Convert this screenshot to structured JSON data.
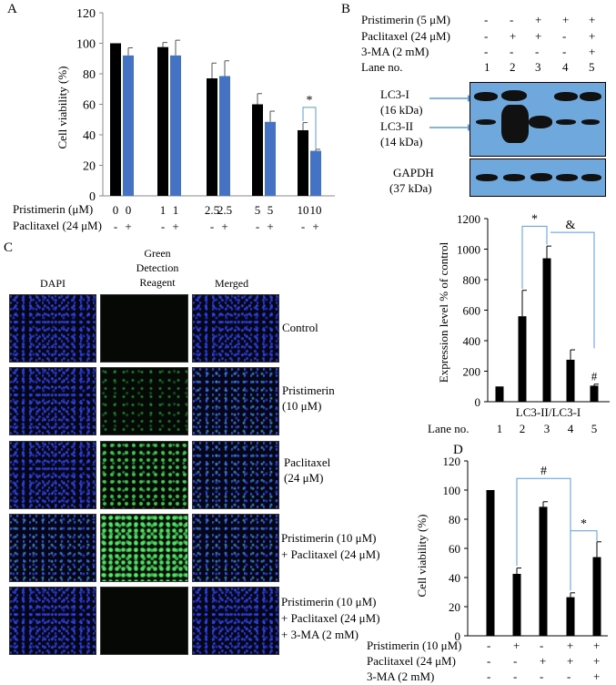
{
  "panel_labels": {
    "a": "A",
    "b": "B",
    "c": "C",
    "d": "D"
  },
  "colors": {
    "black_bar": "#000000",
    "blue_bar": "#4472c4",
    "blot_bg": "#6fa8dc",
    "bracket": "#5b9bd5"
  },
  "panel_a": {
    "ylabel": "Cell viability (%)",
    "yticks": [
      "0",
      "20",
      "40",
      "60",
      "80",
      "100",
      "120"
    ],
    "row1_label": "Pristimerin (μM)",
    "row2_label": "Paclitaxel (24 μM)",
    "row1_values": [
      "0",
      "0",
      "1",
      "1",
      "2.5",
      "2.5",
      "5",
      "5",
      "10",
      "10"
    ],
    "row2_values": [
      "-",
      "+",
      "-",
      "+",
      "-",
      "+",
      "-",
      "+",
      "-",
      "+"
    ],
    "significance": "*"
  },
  "panel_b": {
    "row_labels": [
      "Pristimerin (5 μM)",
      "Paclitaxel (24 μM)",
      "3-MA (2 mM)",
      "Lane no."
    ],
    "row_values": [
      [
        "-",
        "-",
        "+",
        "+",
        "+"
      ],
      [
        "-",
        "+",
        "+",
        "-",
        "+"
      ],
      [
        "-",
        "-",
        "-",
        "-",
        "+"
      ],
      [
        "1",
        "2",
        "3",
        "4",
        "5"
      ]
    ],
    "lc3_i": "LC3-I",
    "lc3_i_kda": "(16 kDa)",
    "lc3_ii": "LC3-II",
    "lc3_ii_kda": "(14 kDa)",
    "gapdh": "GAPDH",
    "gapdh_kda": "(37 kDa)",
    "bar_ylabel": "Expression level % of control",
    "bar_yticks": [
      "0",
      "200",
      "400",
      "600",
      "800",
      "1000",
      "1200"
    ],
    "bar_xlabel": "LC3-II/LC3-I",
    "lane_label": "Lane no.",
    "lanes": [
      "1",
      "2",
      "3",
      "4",
      "5"
    ],
    "sig_star": "*",
    "sig_amp": "&",
    "sig_hash": "#"
  },
  "panel_c": {
    "col_dapi": "DAPI",
    "col_green_1": "Green",
    "col_green_2": "Detection",
    "col_green_3": "Reagent",
    "col_merged": "Merged",
    "rows": [
      [
        "Control"
      ],
      [
        "Pristimerin",
        "(10 μM)"
      ],
      [
        "Paclitaxel",
        "(24 μM)"
      ],
      [
        "Pristimerin (10 μM)",
        "+ Paclitaxel (24 μM)"
      ],
      [
        "Pristimerin (10 μM)",
        "+ Paclitaxel (24 μM)",
        "+ 3-MA (2 mM)"
      ]
    ]
  },
  "panel_d": {
    "ylabel": "Cell viability (%)",
    "yticks": [
      "0",
      "20",
      "40",
      "60",
      "80",
      "100",
      "120"
    ],
    "row_labels": [
      "Pristimerin (10 μM)",
      "Paclitaxel (24 μM)",
      "3-MA (2 mM)"
    ],
    "row_values": [
      [
        "-",
        "+",
        "-",
        "+",
        "+"
      ],
      [
        "-",
        "-",
        "+",
        "+",
        "+"
      ],
      [
        "-",
        "-",
        "-",
        "-",
        "+"
      ]
    ],
    "sig_hash": "#",
    "sig_star": "*"
  },
  "chart_data": [
    {
      "type": "bar",
      "panel": "A",
      "ylabel": "Cell viability (%)",
      "ylim": [
        0,
        120
      ],
      "series": [
        {
          "name": "Paclitaxel -",
          "color": "#000000",
          "values": [
            100,
            97.5,
            77,
            60,
            43
          ],
          "errors": [
            0,
            3,
            10,
            7,
            5
          ]
        },
        {
          "name": "Paclitaxel +",
          "color": "#4472c4",
          "values": [
            92,
            92,
            78.5,
            48.5,
            29.5
          ],
          "errors": [
            5,
            10,
            10,
            7,
            1
          ]
        }
      ],
      "categories": [
        "0",
        "1",
        "2.5",
        "5",
        "10"
      ],
      "grid": false
    },
    {
      "type": "bar",
      "panel": "B",
      "xlabel": "LC3-II/LC3-I",
      "ylabel": "Expression level % of control",
      "ylim": [
        0,
        1200
      ],
      "categories": [
        "1",
        "2",
        "3",
        "4",
        "5"
      ],
      "values": [
        100,
        560,
        940,
        275,
        105
      ],
      "errors": [
        0,
        170,
        80,
        65,
        10
      ],
      "grid": false
    },
    {
      "type": "bar",
      "panel": "D",
      "ylabel": "Cell viability (%)",
      "ylim": [
        0,
        120
      ],
      "categories": [
        "1",
        "2",
        "3",
        "4",
        "5"
      ],
      "values": [
        100,
        42.5,
        88.5,
        26.5,
        54
      ],
      "errors": [
        0,
        4,
        3.5,
        3,
        10.5
      ],
      "grid": false
    }
  ]
}
